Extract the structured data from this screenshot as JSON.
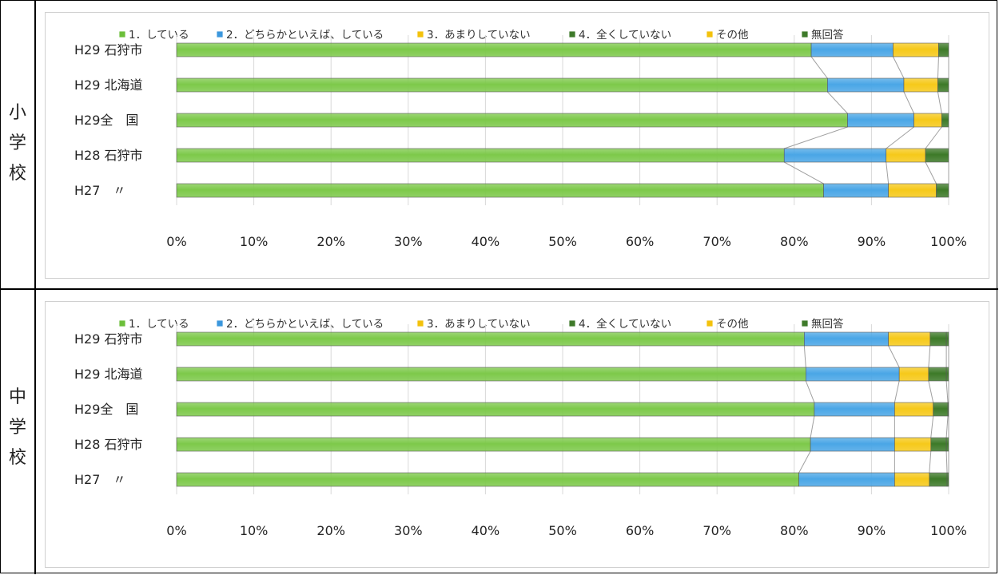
{
  "colors": {
    "legend": [
      "#6cbf3a",
      "#3b97dd",
      "#f3c20c",
      "#3e7a2a",
      "#f3c20c",
      "#3e7a2a"
    ],
    "bar_fill": [
      "#7dc94a",
      "#4aa6e6",
      "#f6c91a",
      "#3d7a28",
      "#f6c91a",
      "#3d7a28"
    ],
    "connector": "#a0a0a0",
    "grid": "#d9d9d9"
  },
  "panels": [
    {
      "side_label": [
        "小",
        "学",
        "校"
      ],
      "chart_data": {
        "type": "bar",
        "orientation": "horizontal-stacked-100",
        "legend": [
          "1．している",
          "2．どちらかといえば、している",
          "3．あまりしていない",
          "4．全くしていない",
          "その他",
          "無回答"
        ],
        "legend_position": "top",
        "categories": [
          "H29 石狩市",
          "H29 北海道",
          "H29全　国",
          "H28 石狩市",
          "H27　〃"
        ],
        "series": [
          {
            "name": "1．している",
            "values": [
              82.2,
              84.3,
              86.9,
              78.7,
              83.8
            ]
          },
          {
            "name": "2．どちらかといえば、している",
            "values": [
              10.6,
              9.9,
              8.6,
              13.2,
              8.4
            ]
          },
          {
            "name": "3．あまりしていない",
            "values": [
              5.9,
              4.4,
              3.6,
              5.1,
              6.2
            ]
          },
          {
            "name": "4．全くしていない",
            "values": [
              1.3,
              1.4,
              0.9,
              3.0,
              1.6
            ]
          },
          {
            "name": "その他",
            "values": [
              0,
              0,
              0,
              0,
              0
            ]
          },
          {
            "name": "無回答",
            "values": [
              0,
              0,
              0,
              0,
              0
            ]
          }
        ],
        "x_ticks": [
          "0%",
          "10%",
          "20%",
          "30%",
          "40%",
          "50%",
          "60%",
          "70%",
          "80%",
          "90%",
          "100%"
        ],
        "xlim": [
          0,
          100
        ],
        "grid": true
      }
    },
    {
      "side_label": [
        "中",
        "学",
        "校"
      ],
      "chart_data": {
        "type": "bar",
        "orientation": "horizontal-stacked-100",
        "legend": [
          "1．している",
          "2．どちらかといえば、している",
          "3．あまりしていない",
          "4．全くしていない",
          "その他",
          "無回答"
        ],
        "legend_position": "top",
        "categories": [
          "H29 石狩市",
          "H29 北海道",
          "H29全　国",
          "H28 石狩市",
          "H27　〃"
        ],
        "series": [
          {
            "name": "1．している",
            "values": [
              81.3,
              81.5,
              82.6,
              82.1,
              80.6
            ]
          },
          {
            "name": "2．どちらかといえば、している",
            "values": [
              10.9,
              12.1,
              10.4,
              10.9,
              12.4
            ]
          },
          {
            "name": "3．あまりしていない",
            "values": [
              5.4,
              3.8,
              5.0,
              4.7,
              4.5
            ]
          },
          {
            "name": "4．全くしていない",
            "values": [
              2.1,
              2.3,
              1.9,
              2.0,
              2.3
            ]
          },
          {
            "name": "その他",
            "values": [
              0,
              0,
              0,
              0,
              0
            ]
          },
          {
            "name": "無回答",
            "values": [
              0.3,
              0.3,
              0.1,
              0.3,
              0.2
            ]
          }
        ],
        "x_ticks": [
          "0%",
          "10%",
          "20%",
          "30%",
          "40%",
          "50%",
          "60%",
          "70%",
          "80%",
          "90%",
          "100%"
        ],
        "xlim": [
          0,
          100
        ],
        "grid": true
      }
    }
  ]
}
